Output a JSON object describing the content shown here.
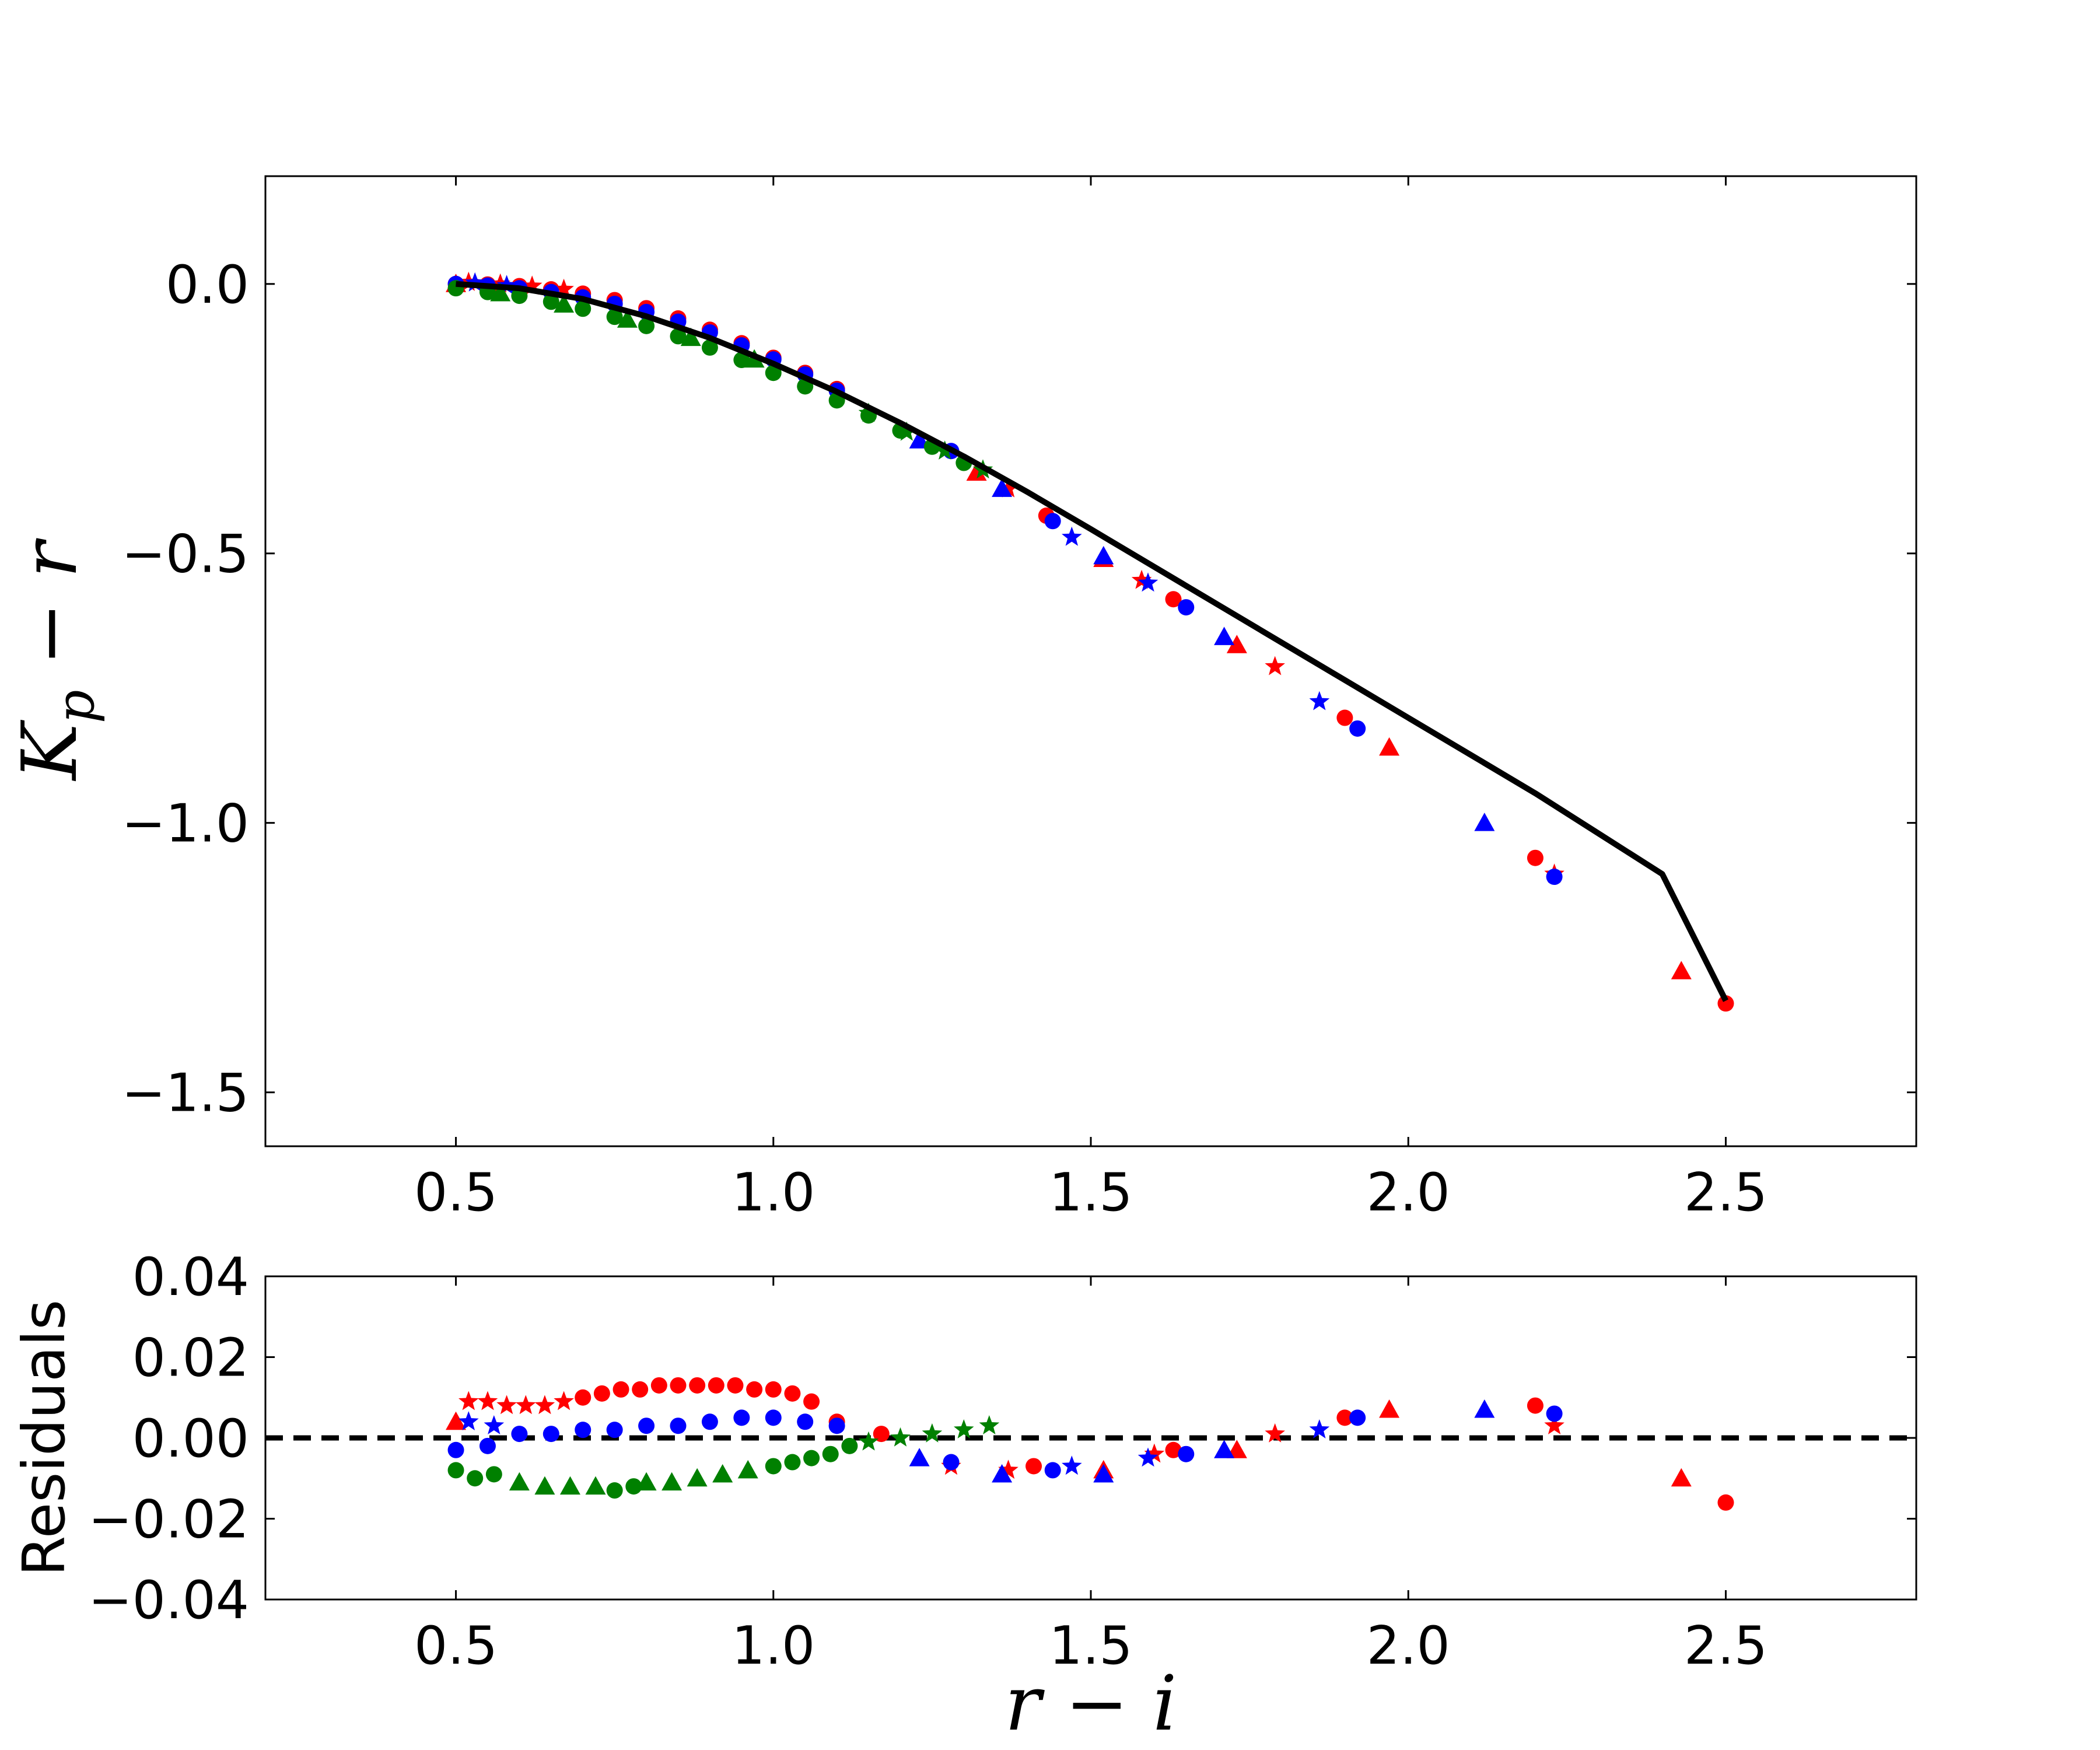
{
  "chart_data": [
    {
      "type": "scatter",
      "panel": "main",
      "xlabel": "r − i",
      "ylabel": "K_p − r",
      "xlim": [
        0.2,
        2.8
      ],
      "ylim": [
        -1.6,
        0.2
      ],
      "x_ticks": [
        0.5,
        1.0,
        1.5,
        2.0,
        2.5
      ],
      "y_ticks": [
        0.0,
        -0.5,
        -1.0,
        -1.5
      ],
      "x_tick_labels": [
        "0.5",
        "1.0",
        "1.5",
        "2.0",
        "2.5"
      ],
      "y_tick_labels": [
        "0.0",
        "−0.5",
        "−1.0",
        "−1.5"
      ],
      "grid": false,
      "fit_line": {
        "color": "#000000",
        "x": [
          0.5,
          0.6,
          0.7,
          0.8,
          0.9,
          1.0,
          1.1,
          1.2,
          1.3,
          1.4,
          1.5,
          1.6,
          1.7,
          1.8,
          1.9,
          2.0,
          2.1,
          2.2,
          2.3,
          2.4,
          2.5
        ],
        "y": [
          0.0,
          -0.008,
          -0.028,
          -0.06,
          -0.1,
          -0.148,
          -0.2,
          -0.258,
          -0.32,
          -0.386,
          -0.455,
          -0.525,
          -0.595,
          -0.665,
          -0.735,
          -0.805,
          -0.875,
          -0.945,
          -1.02,
          -1.095,
          -1.33
        ]
      },
      "series": [
        {
          "color": "#ff0000",
          "marker": "circle",
          "x": [
            0.5,
            0.55,
            0.6,
            0.65,
            0.7,
            0.75,
            0.8,
            0.85,
            0.9,
            0.95,
            1.0,
            1.05,
            1.1,
            1.43,
            1.63,
            1.9,
            2.2,
            2.5
          ],
          "y": [
            0.0,
            -0.001,
            -0.004,
            -0.01,
            -0.018,
            -0.03,
            -0.045,
            -0.064,
            -0.085,
            -0.11,
            -0.137,
            -0.165,
            -0.195,
            -0.43,
            -0.585,
            -0.805,
            -1.065,
            -1.335
          ]
        },
        {
          "color": "#ff0000",
          "marker": "star",
          "x": [
            0.52,
            0.57,
            0.62,
            0.67,
            1.37,
            1.58,
            1.79,
            2.23
          ],
          "y": [
            0.003,
            0.0,
            -0.004,
            -0.01,
            -0.38,
            -0.55,
            -0.71,
            -1.095
          ]
        },
        {
          "color": "#ff0000",
          "marker": "triangle",
          "x": [
            0.5,
            1.32,
            1.52,
            1.73,
            1.97,
            2.43
          ],
          "y": [
            0.0,
            -0.35,
            -0.51,
            -0.67,
            -0.86,
            -1.275
          ]
        },
        {
          "color": "#0000ff",
          "marker": "circle",
          "x": [
            0.5,
            0.55,
            0.6,
            0.65,
            0.7,
            0.75,
            0.8,
            0.85,
            0.9,
            0.95,
            1.0,
            1.05,
            1.1,
            1.28,
            1.44,
            1.65,
            1.92,
            2.23
          ],
          "y": [
            0.0,
            -0.003,
            -0.008,
            -0.015,
            -0.025,
            -0.037,
            -0.052,
            -0.07,
            -0.09,
            -0.114,
            -0.14,
            -0.168,
            -0.198,
            -0.31,
            -0.44,
            -0.6,
            -0.825,
            -1.1
          ]
        },
        {
          "color": "#0000ff",
          "marker": "star",
          "x": [
            0.53,
            0.58,
            1.47,
            1.59,
            1.86
          ],
          "y": [
            0.002,
            -0.003,
            -0.47,
            -0.555,
            -0.775
          ]
        },
        {
          "color": "#0000ff",
          "marker": "triangle",
          "x": [
            1.23,
            1.36,
            1.52,
            1.71,
            2.12
          ],
          "y": [
            -0.29,
            -0.38,
            -0.505,
            -0.655,
            -1.0
          ]
        },
        {
          "color": "#008000",
          "marker": "circle",
          "x": [
            0.5,
            0.55,
            0.6,
            0.65,
            0.7,
            0.75,
            0.8,
            0.85,
            0.9,
            0.95,
            1.0,
            1.05,
            1.1,
            1.15,
            1.2,
            1.25,
            1.3
          ],
          "y": [
            -0.008,
            -0.015,
            -0.022,
            -0.033,
            -0.046,
            -0.061,
            -0.078,
            -0.097,
            -0.118,
            -0.141,
            -0.165,
            -0.19,
            -0.216,
            -0.244,
            -0.272,
            -0.302,
            -0.332
          ]
        },
        {
          "color": "#008000",
          "marker": "triangle",
          "x": [
            0.57,
            0.67,
            0.77,
            0.87,
            0.97
          ],
          "y": [
            -0.017,
            -0.038,
            -0.066,
            -0.1,
            -0.14
          ]
        },
        {
          "color": "#008000",
          "marker": "star",
          "x": [
            1.15,
            1.21,
            1.27,
            1.33
          ],
          "y": [
            -0.24,
            -0.275,
            -0.31,
            -0.345
          ]
        }
      ]
    },
    {
      "type": "scatter",
      "panel": "residuals",
      "xlabel": "r − i",
      "ylabel": "Residuals",
      "xlim": [
        0.2,
        2.8
      ],
      "ylim": [
        -0.04,
        0.04
      ],
      "x_ticks": [
        0.5,
        1.0,
        1.5,
        2.0,
        2.5
      ],
      "y_ticks": [
        0.04,
        0.02,
        0.0,
        -0.02,
        -0.04
      ],
      "x_tick_labels": [
        "0.5",
        "1.0",
        "1.5",
        "2.0",
        "2.5"
      ],
      "y_tick_labels": [
        "0.04",
        "0.02",
        "0.00",
        "−0.02",
        "−0.04"
      ],
      "grid": false,
      "zero_line": {
        "y": 0.0,
        "style": "dashed",
        "color": "#000000"
      },
      "series": [
        {
          "color": "#ff0000",
          "marker": "circle",
          "x": [
            0.7,
            0.73,
            0.76,
            0.79,
            0.82,
            0.85,
            0.88,
            0.91,
            0.94,
            0.97,
            1.0,
            1.03,
            1.06,
            1.1,
            1.17,
            1.41,
            1.63,
            1.9,
            2.2,
            2.5
          ],
          "y": [
            0.01,
            0.011,
            0.012,
            0.012,
            0.013,
            0.013,
            0.013,
            0.013,
            0.013,
            0.012,
            0.012,
            0.011,
            0.009,
            0.004,
            0.001,
            -0.007,
            -0.003,
            0.005,
            0.008,
            -0.016
          ]
        },
        {
          "color": "#ff0000",
          "marker": "star",
          "x": [
            0.52,
            0.55,
            0.58,
            0.61,
            0.64,
            0.67,
            1.28,
            1.37,
            1.6,
            1.79,
            2.23
          ],
          "y": [
            0.009,
            0.009,
            0.008,
            0.008,
            0.008,
            0.009,
            -0.007,
            -0.008,
            -0.004,
            0.001,
            0.003
          ]
        },
        {
          "color": "#ff0000",
          "marker": "triangle",
          "x": [
            0.5,
            1.52,
            1.73,
            1.97,
            2.43
          ],
          "y": [
            0.004,
            -0.008,
            -0.003,
            0.007,
            -0.01
          ]
        },
        {
          "color": "#0000ff",
          "marker": "circle",
          "x": [
            0.5,
            0.55,
            0.6,
            0.65,
            0.7,
            0.75,
            0.8,
            0.85,
            0.9,
            0.95,
            1.0,
            1.05,
            1.1,
            1.28,
            1.44,
            1.65,
            1.92,
            2.23
          ],
          "y": [
            -0.003,
            -0.002,
            0.001,
            0.001,
            0.002,
            0.002,
            0.003,
            0.003,
            0.004,
            0.005,
            0.005,
            0.004,
            0.003,
            -0.006,
            -0.008,
            -0.004,
            0.005,
            0.006
          ]
        },
        {
          "color": "#0000ff",
          "marker": "star",
          "x": [
            0.52,
            0.56,
            1.47,
            1.59,
            1.86
          ],
          "y": [
            0.004,
            0.003,
            -0.007,
            -0.005,
            0.002
          ]
        },
        {
          "color": "#0000ff",
          "marker": "triangle",
          "x": [
            1.23,
            1.36,
            1.52,
            1.71,
            2.12
          ],
          "y": [
            -0.005,
            -0.009,
            -0.009,
            -0.003,
            0.007
          ]
        },
        {
          "color": "#008000",
          "marker": "circle",
          "x": [
            0.5,
            0.53,
            0.56,
            0.75,
            0.78,
            1.0,
            1.03,
            1.06,
            1.09,
            1.12
          ],
          "y": [
            -0.008,
            -0.01,
            -0.009,
            -0.013,
            -0.012,
            -0.007,
            -0.006,
            -0.005,
            -0.004,
            -0.002
          ]
        },
        {
          "color": "#008000",
          "marker": "triangle",
          "x": [
            0.6,
            0.64,
            0.68,
            0.72,
            0.8,
            0.84,
            0.88,
            0.92,
            0.96
          ],
          "y": [
            -0.011,
            -0.012,
            -0.012,
            -0.012,
            -0.011,
            -0.011,
            -0.01,
            -0.009,
            -0.008
          ]
        },
        {
          "color": "#008000",
          "marker": "star",
          "x": [
            1.15,
            1.2,
            1.25,
            1.3,
            1.34
          ],
          "y": [
            -0.001,
            0.0,
            0.001,
            0.002,
            0.003
          ]
        }
      ]
    }
  ]
}
